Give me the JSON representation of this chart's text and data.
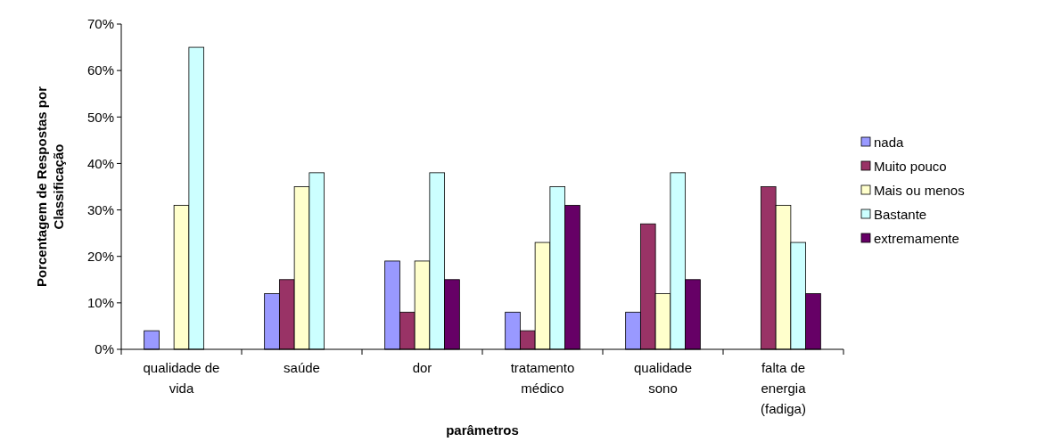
{
  "chart_data": {
    "type": "bar",
    "xlabel": "parâmetros",
    "ylabel": "Porcentagem de Respostas por Classificação",
    "categories": [
      "qualidade de vida",
      "saúde",
      "dor",
      "tratamento médico",
      "qualidade sono",
      "falta de energia (fadiga)"
    ],
    "series": [
      {
        "name": "nada",
        "color": "#9999ff",
        "values": [
          4,
          12,
          19,
          8,
          8,
          0
        ]
      },
      {
        "name": "Muito pouco",
        "color": "#993366",
        "values": [
          0,
          15,
          8,
          4,
          27,
          35
        ]
      },
      {
        "name": "Mais ou menos",
        "color": "#ffffcc",
        "values": [
          31,
          35,
          19,
          23,
          12,
          31
        ]
      },
      {
        "name": "Bastante",
        "color": "#ccffff",
        "values": [
          65,
          38,
          38,
          35,
          38,
          23
        ]
      },
      {
        "name": "extremamente",
        "color": "#660066",
        "values": [
          0,
          0,
          15,
          31,
          15,
          12
        ]
      }
    ],
    "ylim": [
      0,
      70
    ],
    "yticks": [
      {
        "value": 0,
        "label": "0%"
      },
      {
        "value": 10,
        "label": "10%"
      },
      {
        "value": 20,
        "label": "20%"
      },
      {
        "value": 30,
        "label": "30%"
      },
      {
        "value": 40,
        "label": "40%"
      },
      {
        "value": 50,
        "label": "50%"
      },
      {
        "value": 60,
        "label": "60%"
      },
      {
        "value": 70,
        "label": "70%"
      }
    ],
    "grid": false,
    "legend": "right"
  }
}
